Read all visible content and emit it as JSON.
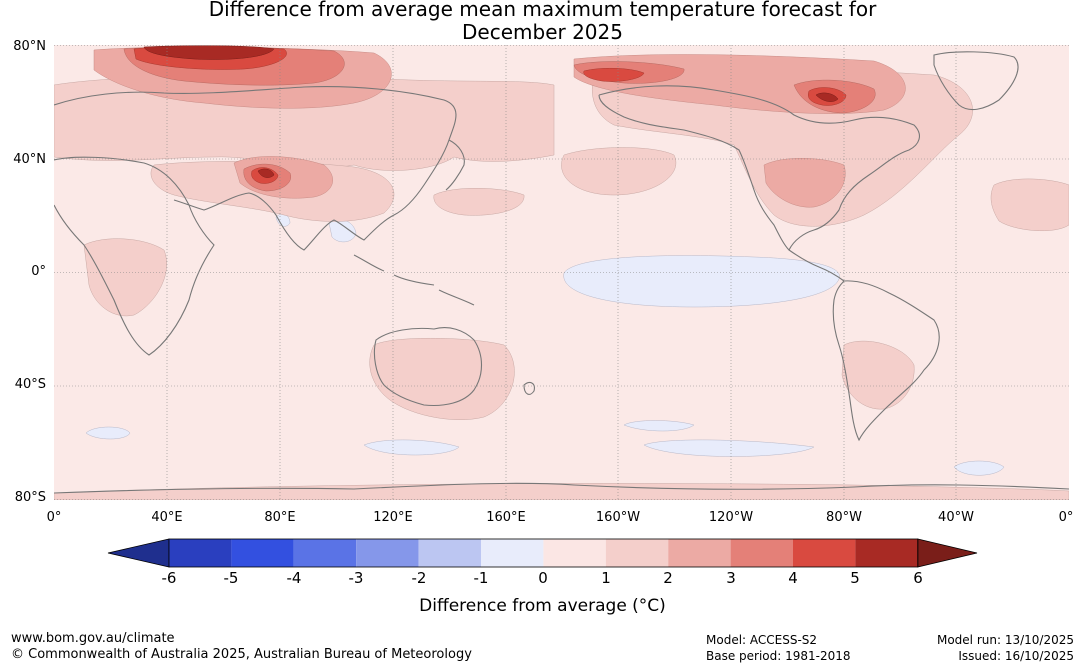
{
  "title_line1": "Difference from average mean maximum temperature forecast for",
  "title_line2": "December 2025",
  "lat_labels": [
    "80°N",
    "40°N",
    "0°",
    "40°S",
    "80°S"
  ],
  "lon_labels": [
    "0°",
    "40°E",
    "80°E",
    "120°E",
    "160°E",
    "160°W",
    "120°W",
    "80°W",
    "40°W",
    "0°"
  ],
  "colorbar": {
    "ticks": [
      "-6",
      "-5",
      "-4",
      "-3",
      "-2",
      "-1",
      "0",
      "1",
      "2",
      "3",
      "4",
      "5",
      "6"
    ],
    "colors": [
      "#1f2f8e",
      "#2a3fbf",
      "#3350e0",
      "#5a73e6",
      "#8597ea",
      "#bcc6f2",
      "#e8ecfb",
      "#fbe6e4",
      "#f4cfcb",
      "#ecaaa4",
      "#e48078",
      "#d94a40",
      "#a82a24",
      "#7a1e19"
    ],
    "label": "Difference from average (°C)"
  },
  "footer": {
    "website": "www.bom.gov.au/climate",
    "copyright": "© Commonwealth of Australia 2025, Australian Bureau of Meteorology",
    "model": "Model: ACCESS-S2",
    "base_period": "Base period: 1981-2018",
    "model_run": "Model run: 13/10/2025",
    "issued": "Issued: 16/10/2025"
  }
}
